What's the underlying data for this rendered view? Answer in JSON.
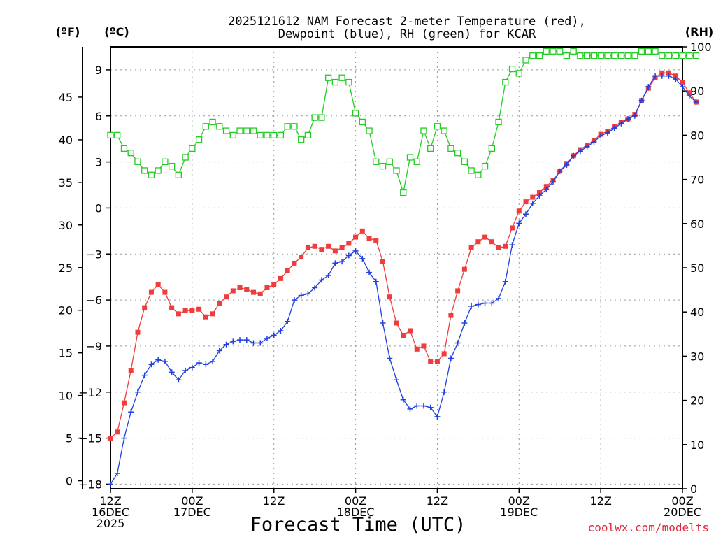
{
  "chart_data": {
    "type": "line",
    "title": "2025121612 NAM Forecast 2-meter Temperature (red),",
    "title_line2": "Dewpoint (blue), RH (green) for KCAR",
    "xlabel": "Forecast Time (UTC)",
    "credit": "coolwx.com/modelts",
    "units": {
      "fahrenheit": "(ºF)",
      "celsius": "(ºC)",
      "rh": "(RH)"
    },
    "x_range_hours": [
      0,
      84
    ],
    "x_ticks": [
      {
        "hour": 0,
        "lines": [
          "12Z",
          "16DEC",
          "2025"
        ]
      },
      {
        "hour": 12,
        "lines": [
          "00Z",
          "17DEC"
        ]
      },
      {
        "hour": 24,
        "lines": [
          "12Z"
        ]
      },
      {
        "hour": 36,
        "lines": [
          "00Z",
          "18DEC"
        ]
      },
      {
        "hour": 48,
        "lines": [
          "12Z"
        ]
      },
      {
        "hour": 60,
        "lines": [
          "00Z",
          "19DEC"
        ]
      },
      {
        "hour": 72,
        "lines": [
          "12Z"
        ]
      },
      {
        "hour": 84,
        "lines": [
          "00Z",
          "20DEC"
        ]
      }
    ],
    "celsius_axis": {
      "range": [
        -18.3,
        10.5
      ],
      "ticks": [
        "9",
        "6",
        "3",
        "0",
        "−3",
        "−6",
        "−9",
        "−12",
        "−15",
        "−18"
      ]
    },
    "fahrenheit_axis": {
      "ticks": [
        "45",
        "40",
        "35",
        "30",
        "25",
        "20",
        "15",
        "10",
        "5",
        "0"
      ]
    },
    "rh_axis": {
      "range": [
        0,
        100
      ],
      "ticks": [
        "100",
        "90",
        "80",
        "70",
        "60",
        "50",
        "40",
        "30",
        "20",
        "10",
        "0"
      ]
    },
    "series": [
      {
        "name": "Temperature",
        "unit": "C",
        "color": "#f03c3c",
        "marker": "filled-square",
        "values": [
          -15.0,
          -14.6,
          -12.7,
          -10.6,
          -8.1,
          -6.5,
          -5.5,
          -5.0,
          -5.5,
          -6.5,
          -6.9,
          -6.7,
          -6.7,
          -6.6,
          -7.1,
          -6.9,
          -6.2,
          -5.8,
          -5.4,
          -5.2,
          -5.3,
          -5.5,
          -5.6,
          -5.2,
          -5.0,
          -4.6,
          -4.1,
          -3.6,
          -3.2,
          -2.6,
          -2.5,
          -2.7,
          -2.5,
          -2.8,
          -2.6,
          -2.3,
          -1.9,
          -1.5,
          -2.0,
          -2.1,
          -3.5,
          -5.8,
          -7.5,
          -8.3,
          -8.0,
          -9.2,
          -9.0,
          -10.0,
          -10.0,
          -9.5,
          -7.0,
          -5.4,
          -4.0,
          -2.6,
          -2.2,
          -1.9,
          -2.2,
          -2.6,
          -2.5,
          -1.3,
          -0.2,
          0.4,
          0.7,
          1.0,
          1.4,
          1.8,
          2.4,
          2.9,
          3.4,
          3.8,
          4.1,
          4.4,
          4.8,
          5.0,
          5.3,
          5.6,
          5.8,
          6.1,
          7.0,
          7.8,
          8.5,
          8.8,
          8.8,
          8.6,
          8.2,
          7.5,
          6.9
        ]
      },
      {
        "name": "Dewpoint",
        "unit": "C",
        "color": "#2040e0",
        "marker": "plus",
        "values": [
          -18.0,
          -17.3,
          -15.0,
          -13.3,
          -12.0,
          -10.9,
          -10.2,
          -9.9,
          -10.0,
          -10.7,
          -11.2,
          -10.6,
          -10.4,
          -10.1,
          -10.2,
          -10.0,
          -9.3,
          -8.9,
          -8.7,
          -8.6,
          -8.6,
          -8.8,
          -8.8,
          -8.5,
          -8.3,
          -8.0,
          -7.4,
          -6.0,
          -5.7,
          -5.6,
          -5.2,
          -4.7,
          -4.4,
          -3.6,
          -3.5,
          -3.1,
          -2.8,
          -3.3,
          -4.2,
          -4.8,
          -7.5,
          -9.8,
          -11.2,
          -12.5,
          -13.1,
          -12.9,
          -12.9,
          -13.0,
          -13.6,
          -12.0,
          -9.8,
          -8.8,
          -7.5,
          -6.4,
          -6.3,
          -6.2,
          -6.2,
          -5.9,
          -4.8,
          -2.4,
          -1.0,
          -0.4,
          0.3,
          0.8,
          1.2,
          1.7,
          2.4,
          2.8,
          3.4,
          3.7,
          4.0,
          4.3,
          4.7,
          4.9,
          5.2,
          5.5,
          5.8,
          6.0,
          7.0,
          7.9,
          8.6,
          8.6,
          8.6,
          8.4,
          7.9,
          7.3,
          6.9
        ]
      },
      {
        "name": "Relative Humidity",
        "unit": "%",
        "color": "#22cc22",
        "marker": "open-square",
        "values": [
          80,
          80,
          77,
          76,
          74,
          72,
          71,
          72,
          74,
          73,
          71,
          75,
          77,
          79,
          82,
          83,
          82,
          81,
          80,
          81,
          81,
          81,
          80,
          80,
          80,
          80,
          82,
          82,
          79,
          80,
          84,
          84,
          93,
          92,
          93,
          92,
          85,
          83,
          81,
          74,
          73,
          74,
          72,
          67,
          75,
          74,
          81,
          77,
          82,
          81,
          77,
          76,
          74,
          72,
          71,
          73,
          77,
          83,
          92,
          95,
          94,
          97,
          98,
          98,
          99,
          99,
          99,
          98,
          99,
          98,
          98,
          98,
          98,
          98,
          98,
          98,
          98,
          98,
          99,
          99,
          99,
          98,
          98,
          98,
          98,
          98,
          98
        ]
      }
    ]
  }
}
